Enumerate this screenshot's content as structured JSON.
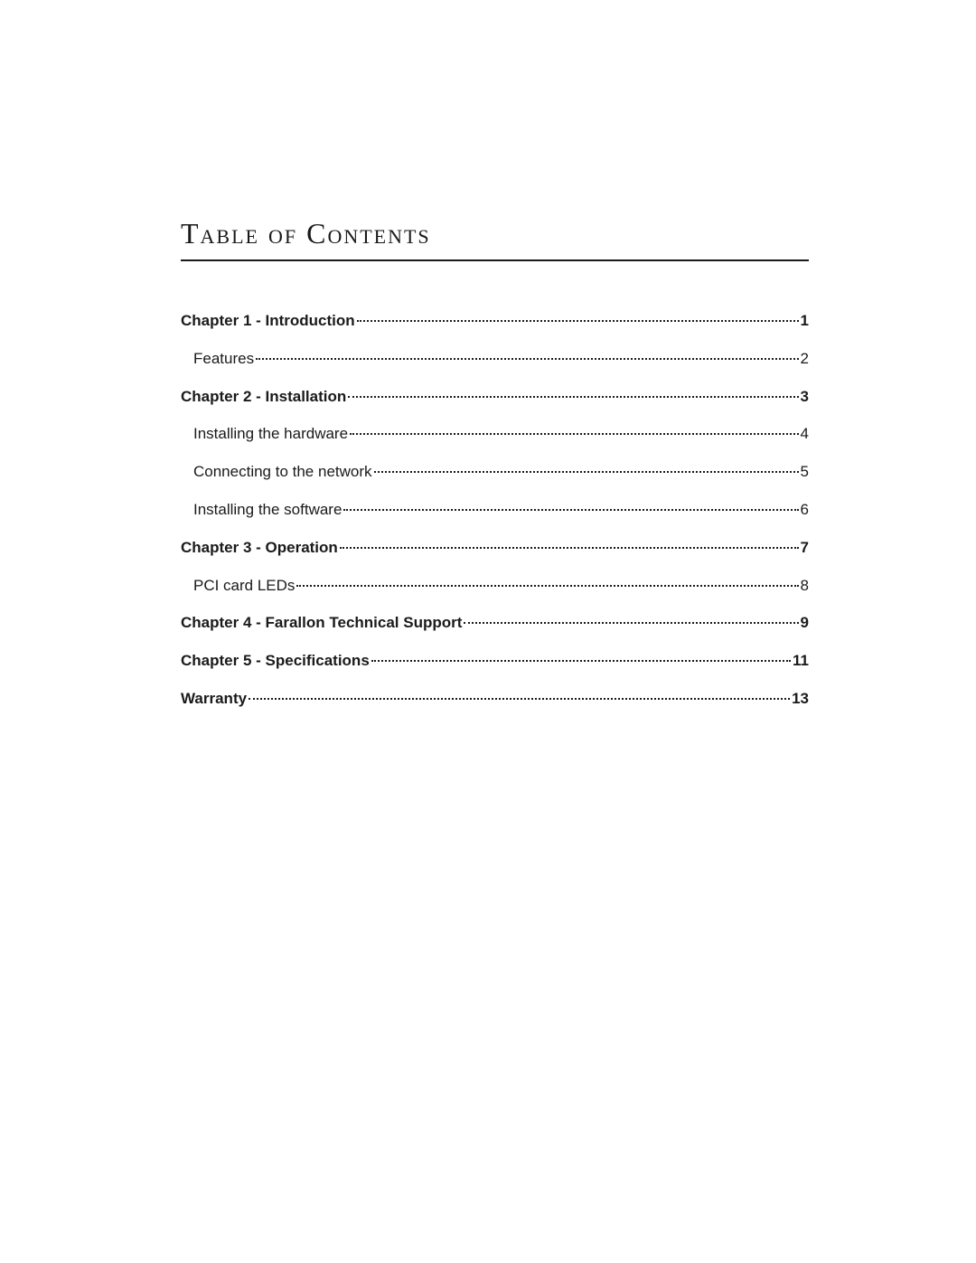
{
  "title": "Table of Contents",
  "entries": [
    {
      "label": "Chapter 1 - Introduction",
      "page": "1",
      "bold": true,
      "sub": false
    },
    {
      "label": "Features",
      "page": "2",
      "bold": false,
      "sub": true
    },
    {
      "label": "Chapter 2 - Installation",
      "page": "3",
      "bold": true,
      "sub": false
    },
    {
      "label": "Installing the hardware",
      "page": "4",
      "bold": false,
      "sub": true
    },
    {
      "label": "Connecting to the network",
      "page": "5",
      "bold": false,
      "sub": true
    },
    {
      "label": "Installing the software",
      "page": "6",
      "bold": false,
      "sub": true
    },
    {
      "label": "Chapter 3 - Operation",
      "page": "7",
      "bold": true,
      "sub": false
    },
    {
      "label": "PCI card LEDs",
      "page": "8",
      "bold": false,
      "sub": true
    },
    {
      "label": "Chapter 4 - Farallon Technical Support",
      "page": "9",
      "bold": true,
      "sub": false
    },
    {
      "label": "Chapter 5 - Specifications",
      "page": "11",
      "bold": true,
      "sub": false
    },
    {
      "label": "Warranty",
      "page": "13",
      "bold": true,
      "sub": false
    }
  ],
  "colors": {
    "text": "#1a1a1a",
    "background": "#ffffff",
    "rule": "#1a1a1a"
  },
  "typography": {
    "title_fontsize": 32,
    "entry_fontsize": 17
  }
}
